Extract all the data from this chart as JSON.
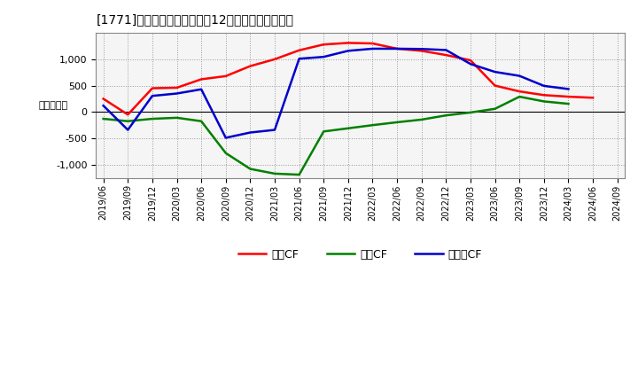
{
  "title_plain": "[1771]　キャッシュフローの12か月移動合計の推移",
  "ylabel": "（百万円）",
  "dates": [
    "2019/06",
    "2019/09",
    "2019/12",
    "2020/03",
    "2020/06",
    "2020/09",
    "2020/12",
    "2021/03",
    "2021/06",
    "2021/09",
    "2021/12",
    "2022/03",
    "2022/06",
    "2022/09",
    "2022/12",
    "2023/03",
    "2023/06",
    "2023/09",
    "2023/12",
    "2024/03",
    "2024/06",
    "2024/09"
  ],
  "operating_cf": [
    250,
    -50,
    450,
    460,
    620,
    680,
    870,
    1000,
    1170,
    1280,
    1310,
    1300,
    1200,
    1160,
    1080,
    980,
    500,
    390,
    320,
    290,
    270,
    null
  ],
  "investing_cf": [
    -130,
    -175,
    -130,
    -110,
    -175,
    -780,
    -1080,
    -1170,
    -1190,
    -370,
    -310,
    -250,
    -195,
    -145,
    -65,
    -10,
    60,
    290,
    200,
    155,
    null,
    null
  ],
  "free_cf": [
    120,
    -340,
    305,
    350,
    430,
    -490,
    -390,
    -340,
    1010,
    1045,
    1160,
    1200,
    1200,
    1195,
    1175,
    910,
    760,
    685,
    495,
    435,
    null,
    null
  ],
  "operating_color": "#ff0000",
  "investing_color": "#008000",
  "free_color": "#0000cd",
  "background_color": "#ffffff",
  "plot_bg_color": "#f5f5f5",
  "grid_color": "#999999",
  "ylim": [
    -1250,
    1500
  ],
  "yticks": [
    -1000,
    -500,
    0,
    500,
    1000
  ],
  "legend_labels": [
    "営業CF",
    "投資CF",
    "フリーCF"
  ]
}
